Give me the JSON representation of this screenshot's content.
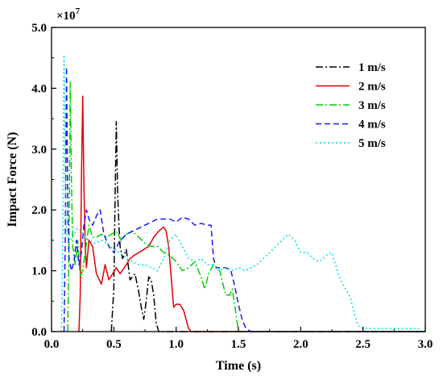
{
  "chart_data": {
    "type": "line",
    "xlabel": "Time (s)",
    "ylabel": "Impact Force (N)",
    "y_multiplier": "×10",
    "y_multiplier_exp": "7",
    "xlim": [
      0,
      3.0
    ],
    "ylim": [
      0,
      5.0
    ],
    "x_ticks": [
      "0.0",
      "0.5",
      "1.0",
      "1.5",
      "2.0",
      "2.5",
      "3.0"
    ],
    "y_ticks": [
      "0.0",
      "1.0",
      "2.0",
      "3.0",
      "4.0",
      "5.0"
    ],
    "legend_position": "top-right",
    "grid": false,
    "series": [
      {
        "name": "1 m/s",
        "color": "#000000",
        "dash": "dashdot",
        "points": [
          [
            0.48,
            0
          ],
          [
            0.5,
            0.7
          ],
          [
            0.51,
            2.2
          ],
          [
            0.52,
            3.45
          ],
          [
            0.53,
            2.3
          ],
          [
            0.54,
            1.8
          ],
          [
            0.55,
            1.4
          ],
          [
            0.57,
            1.2
          ],
          [
            0.6,
            1.35
          ],
          [
            0.63,
            0.85
          ],
          [
            0.67,
            0.95
          ],
          [
            0.7,
            0.65
          ],
          [
            0.72,
            0.4
          ],
          [
            0.74,
            0.2
          ],
          [
            0.76,
            0.5
          ],
          [
            0.78,
            0.9
          ],
          [
            0.8,
            0.85
          ],
          [
            0.82,
            0.6
          ],
          [
            0.84,
            0.15
          ],
          [
            0.86,
            0.0
          ],
          [
            3.0,
            0.0
          ]
        ]
      },
      {
        "name": "2 m/s",
        "color": "#e00000",
        "dash": "solid",
        "points": [
          [
            0.22,
            0
          ],
          [
            0.23,
            0.6
          ],
          [
            0.24,
            2.5
          ],
          [
            0.25,
            3.87
          ],
          [
            0.26,
            2.4
          ],
          [
            0.27,
            1.4
          ],
          [
            0.28,
            1.05
          ],
          [
            0.3,
            1.5
          ],
          [
            0.33,
            1.4
          ],
          [
            0.36,
            0.95
          ],
          [
            0.4,
            0.78
          ],
          [
            0.43,
            1.1
          ],
          [
            0.46,
            0.85
          ],
          [
            0.49,
            0.95
          ],
          [
            0.52,
            1.05
          ],
          [
            0.55,
            0.95
          ],
          [
            0.6,
            1.1
          ],
          [
            0.63,
            1.2
          ],
          [
            0.66,
            1.25
          ],
          [
            0.7,
            1.3
          ],
          [
            0.74,
            1.35
          ],
          [
            0.78,
            1.4
          ],
          [
            0.82,
            1.55
          ],
          [
            0.86,
            1.65
          ],
          [
            0.9,
            1.72
          ],
          [
            0.92,
            1.65
          ],
          [
            0.94,
            1.4
          ],
          [
            0.96,
            0.9
          ],
          [
            0.98,
            0.4
          ],
          [
            1.0,
            0.45
          ],
          [
            1.03,
            0.45
          ],
          [
            1.06,
            0.35
          ],
          [
            1.08,
            0.2
          ],
          [
            1.1,
            0.05
          ],
          [
            1.12,
            0.0
          ],
          [
            3.0,
            0.0
          ]
        ]
      },
      {
        "name": "3 m/s",
        "color": "#00d000",
        "dash": "dashdot",
        "points": [
          [
            0.13,
            0
          ],
          [
            0.14,
            1.5
          ],
          [
            0.15,
            4.1
          ],
          [
            0.16,
            2.5
          ],
          [
            0.17,
            1.4
          ],
          [
            0.19,
            1.1
          ],
          [
            0.21,
            1.5
          ],
          [
            0.23,
            0.9
          ],
          [
            0.25,
            1.0
          ],
          [
            0.27,
            1.3
          ],
          [
            0.3,
            1.75
          ],
          [
            0.33,
            1.55
          ],
          [
            0.36,
            1.55
          ],
          [
            0.4,
            1.6
          ],
          [
            0.44,
            1.55
          ],
          [
            0.48,
            1.6
          ],
          [
            0.52,
            1.65
          ],
          [
            0.56,
            1.5
          ],
          [
            0.6,
            1.6
          ],
          [
            0.65,
            1.65
          ],
          [
            0.7,
            1.55
          ],
          [
            0.75,
            1.45
          ],
          [
            0.8,
            1.4
          ],
          [
            0.85,
            1.4
          ],
          [
            0.9,
            1.3
          ],
          [
            0.95,
            1.25
          ],
          [
            1.0,
            1.15
          ],
          [
            1.05,
            1.0
          ],
          [
            1.1,
            1.05
          ],
          [
            1.15,
            1.15
          ],
          [
            1.2,
            0.9
          ],
          [
            1.23,
            0.7
          ],
          [
            1.26,
            0.95
          ],
          [
            1.3,
            1.1
          ],
          [
            1.35,
            1.0
          ],
          [
            1.38,
            0.75
          ],
          [
            1.4,
            0.6
          ],
          [
            1.43,
            0.6
          ],
          [
            1.45,
            0.7
          ],
          [
            1.47,
            0.45
          ],
          [
            1.48,
            0.3
          ],
          [
            1.5,
            0.0
          ],
          [
            3.0,
            0.0
          ]
        ]
      },
      {
        "name": "4 m/s",
        "color": "#1a1aee",
        "dash": "dashed",
        "points": [
          [
            0.1,
            0
          ],
          [
            0.11,
            1.5
          ],
          [
            0.12,
            4.35
          ],
          [
            0.13,
            2.0
          ],
          [
            0.14,
            1.2
          ],
          [
            0.16,
            1.0
          ],
          [
            0.18,
            1.15
          ],
          [
            0.2,
            1.5
          ],
          [
            0.22,
            1.1
          ],
          [
            0.24,
            1.3
          ],
          [
            0.26,
            1.75
          ],
          [
            0.28,
            2.0
          ],
          [
            0.3,
            1.85
          ],
          [
            0.33,
            1.75
          ],
          [
            0.36,
            1.9
          ],
          [
            0.39,
            2.0
          ],
          [
            0.42,
            1.6
          ],
          [
            0.46,
            1.4
          ],
          [
            0.5,
            1.3
          ],
          [
            0.55,
            1.5
          ],
          [
            0.6,
            1.6
          ],
          [
            0.65,
            1.65
          ],
          [
            0.7,
            1.7
          ],
          [
            0.75,
            1.75
          ],
          [
            0.8,
            1.8
          ],
          [
            0.85,
            1.85
          ],
          [
            0.9,
            1.85
          ],
          [
            0.95,
            1.85
          ],
          [
            1.0,
            1.8
          ],
          [
            1.05,
            1.88
          ],
          [
            1.1,
            1.85
          ],
          [
            1.15,
            1.75
          ],
          [
            1.2,
            1.78
          ],
          [
            1.25,
            1.75
          ],
          [
            1.28,
            1.75
          ],
          [
            1.3,
            1.2
          ],
          [
            1.32,
            1.05
          ],
          [
            1.36,
            1.05
          ],
          [
            1.4,
            1.05
          ],
          [
            1.44,
            1.0
          ],
          [
            1.47,
            0.75
          ],
          [
            1.5,
            0.45
          ],
          [
            1.53,
            0.2
          ],
          [
            1.56,
            0.05
          ],
          [
            1.6,
            0.0
          ],
          [
            3.0,
            0.0
          ]
        ]
      },
      {
        "name": "5 m/s",
        "color": "#00e0e0",
        "dash": "dotted",
        "points": [
          [
            0.08,
            0
          ],
          [
            0.09,
            1.5
          ],
          [
            0.1,
            4.55
          ],
          [
            0.11,
            2.5
          ],
          [
            0.12,
            1.6
          ],
          [
            0.15,
            1.5
          ],
          [
            0.18,
            1.6
          ],
          [
            0.21,
            1.7
          ],
          [
            0.24,
            1.65
          ],
          [
            0.27,
            1.55
          ],
          [
            0.3,
            1.5
          ],
          [
            0.35,
            1.45
          ],
          [
            0.4,
            1.5
          ],
          [
            0.45,
            1.45
          ],
          [
            0.5,
            1.35
          ],
          [
            0.55,
            1.3
          ],
          [
            0.6,
            1.2
          ],
          [
            0.65,
            1.15
          ],
          [
            0.7,
            1.1
          ],
          [
            0.75,
            1.1
          ],
          [
            0.8,
            1.05
          ],
          [
            0.85,
            1.0
          ],
          [
            0.9,
            1.2
          ],
          [
            0.95,
            1.5
          ],
          [
            1.0,
            1.6
          ],
          [
            1.05,
            1.4
          ],
          [
            1.1,
            1.2
          ],
          [
            1.15,
            1.15
          ],
          [
            1.2,
            1.2
          ],
          [
            1.25,
            1.1
          ],
          [
            1.3,
            1.1
          ],
          [
            1.35,
            1.0
          ],
          [
            1.4,
            1.05
          ],
          [
            1.45,
            1.0
          ],
          [
            1.5,
            1.05
          ],
          [
            1.55,
            1.0
          ],
          [
            1.6,
            1.05
          ],
          [
            1.65,
            1.1
          ],
          [
            1.7,
            1.2
          ],
          [
            1.75,
            1.3
          ],
          [
            1.8,
            1.4
          ],
          [
            1.85,
            1.5
          ],
          [
            1.9,
            1.6
          ],
          [
            1.95,
            1.5
          ],
          [
            2.0,
            1.3
          ],
          [
            2.05,
            1.3
          ],
          [
            2.1,
            1.2
          ],
          [
            2.15,
            1.15
          ],
          [
            2.2,
            1.25
          ],
          [
            2.25,
            1.3
          ],
          [
            2.28,
            1.1
          ],
          [
            2.32,
            0.85
          ],
          [
            2.36,
            0.7
          ],
          [
            2.4,
            0.55
          ],
          [
            2.43,
            0.3
          ],
          [
            2.46,
            0.1
          ],
          [
            2.5,
            0.05
          ],
          [
            2.6,
            0.05
          ],
          [
            2.7,
            0.05
          ],
          [
            2.8,
            0.05
          ],
          [
            2.9,
            0.05
          ],
          [
            2.97,
            0.05
          ]
        ]
      }
    ]
  }
}
